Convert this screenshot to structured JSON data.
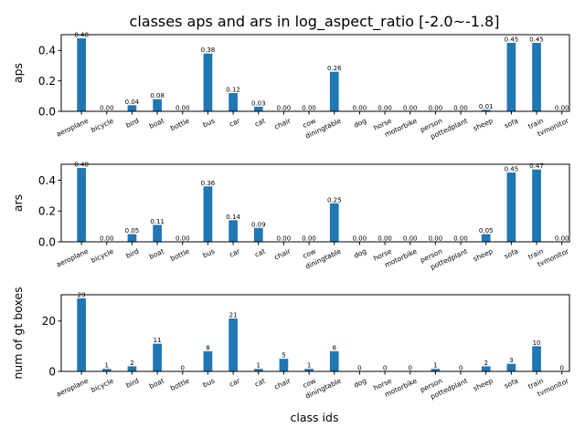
{
  "figure": {
    "title": "classes aps and ars in log_aspect_ratio [-2.0~-1.8]",
    "xlabel": "class ids",
    "bar_color": "#1f77b4"
  },
  "chart_data": [
    {
      "type": "bar",
      "categories": [
        "aeroplane",
        "bicycle",
        "bird",
        "boat",
        "bottle",
        "bus",
        "car",
        "cat",
        "chair",
        "cow",
        "diningtable",
        "dog",
        "horse",
        "motorbike",
        "person",
        "pottedplant",
        "sheep",
        "sofa",
        "train",
        "tvmonitor"
      ],
      "values": [
        0.48,
        0.0,
        0.04,
        0.08,
        0.0,
        0.38,
        0.12,
        0.03,
        0.0,
        0.0,
        0.26,
        0.0,
        0.0,
        0.0,
        0.0,
        0.0,
        0.01,
        0.45,
        0.45,
        0.0
      ],
      "value_labels": [
        "0.48",
        "0.00",
        "0.04",
        "0.08",
        "0.00",
        "0.38",
        "0.12",
        "0.03",
        "0.00",
        "0.00",
        "0.26",
        "0.00",
        "0.00",
        "0.00",
        "0.00",
        "0.00",
        "0.01",
        "0.45",
        "0.45",
        "0.00"
      ],
      "ylabel": "aps",
      "ylim": [
        0,
        0.504
      ],
      "yticks": [
        0.0,
        0.2,
        0.4
      ],
      "ytick_labels": [
        "0.0",
        "0.2",
        "0.4"
      ]
    },
    {
      "type": "bar",
      "categories": [
        "aeroplane",
        "bicycle",
        "bird",
        "boat",
        "bottle",
        "bus",
        "car",
        "cat",
        "chair",
        "cow",
        "diningtable",
        "dog",
        "horse",
        "motorbike",
        "person",
        "pottedplant",
        "sheep",
        "sofa",
        "train",
        "tvmonitor"
      ],
      "values": [
        0.48,
        0.0,
        0.05,
        0.11,
        0.0,
        0.36,
        0.14,
        0.09,
        0.0,
        0.0,
        0.25,
        0.0,
        0.0,
        0.0,
        0.0,
        0.0,
        0.05,
        0.45,
        0.47,
        0.0
      ],
      "value_labels": [
        "0.48",
        "0.00",
        "0.05",
        "0.11",
        "0.00",
        "0.36",
        "0.14",
        "0.09",
        "0.00",
        "0.00",
        "0.25",
        "0.00",
        "0.00",
        "0.00",
        "0.00",
        "0.00",
        "0.05",
        "0.45",
        "0.47",
        "0.00"
      ],
      "ylabel": "ars",
      "ylim": [
        0,
        0.504
      ],
      "yticks": [
        0.0,
        0.2,
        0.4
      ],
      "ytick_labels": [
        "0.0",
        "0.2",
        "0.4"
      ]
    },
    {
      "type": "bar",
      "categories": [
        "aeroplane",
        "bicycle",
        "bird",
        "boat",
        "bottle",
        "bus",
        "car",
        "cat",
        "chair",
        "cow",
        "diningtable",
        "dog",
        "horse",
        "motorbike",
        "person",
        "pottedplant",
        "sheep",
        "sofa",
        "train",
        "tvmonitor"
      ],
      "values": [
        29,
        1,
        2,
        11,
        0,
        8,
        21,
        1,
        5,
        1,
        8,
        0,
        0,
        0,
        1,
        0,
        2,
        3,
        10,
        0
      ],
      "value_labels": [
        "29",
        "1",
        "2",
        "11",
        "0",
        "8",
        "21",
        "1",
        "5",
        "1",
        "8",
        "0",
        "0",
        "0",
        "1",
        "0",
        "2",
        "3",
        "10",
        "0"
      ],
      "ylabel": "num of gt boxes",
      "ylim": [
        0,
        30.45
      ],
      "yticks": [
        0,
        20
      ],
      "ytick_labels": [
        "0",
        "20"
      ]
    }
  ]
}
